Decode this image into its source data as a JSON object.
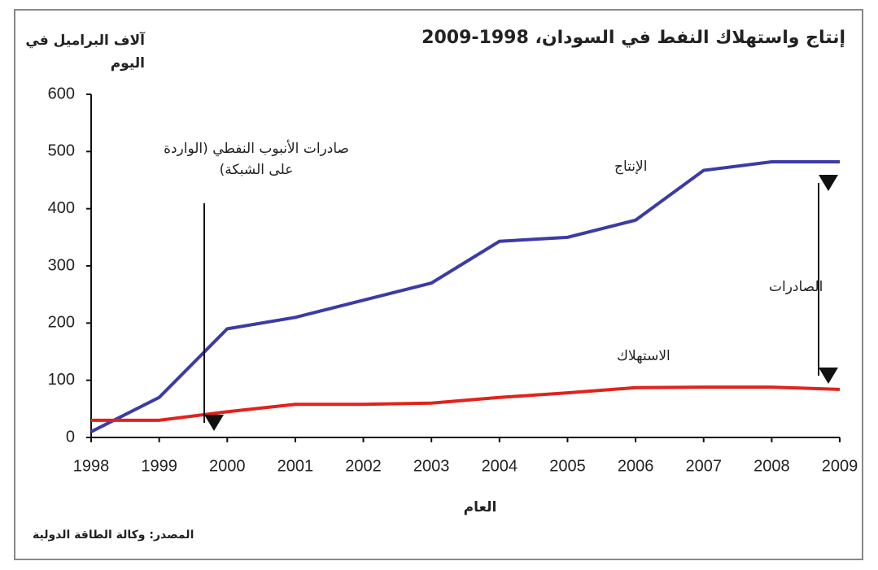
{
  "chart_data": {
    "type": "line",
    "title": "إنتاج واستهلاك النفط في السودان، 1998-2009",
    "ylabel": "آلاف البراميل في اليوم",
    "xlabel": "العام",
    "source": "المصدر: وكالة الطاقة الدولية",
    "x": [
      1998,
      1999,
      2000,
      2001,
      2002,
      2003,
      2004,
      2005,
      2006,
      2007,
      2008,
      2009
    ],
    "series": [
      {
        "name": "الإنتاج",
        "color": "#3b3ba6",
        "values": [
          10,
          70,
          190,
          210,
          240,
          270,
          343,
          350,
          380,
          467,
          482,
          482
        ]
      },
      {
        "name": "الاستهلاك",
        "color": "#e0231c",
        "values": [
          30,
          30,
          45,
          58,
          58,
          60,
          70,
          78,
          87,
          88,
          88,
          84
        ]
      }
    ],
    "annotations": [
      "صادرات الأنبوب النفطي (الواردة على الشبكة)",
      "الصادرات"
    ],
    "xlim": [
      1998,
      2009
    ],
    "xticks": [
      1998,
      1999,
      2000,
      2001,
      2002,
      2003,
      2004,
      2005,
      2006,
      2007,
      2008,
      2009
    ],
    "ylim": [
      0,
      600
    ],
    "yticks": [
      0,
      100,
      200,
      300,
      400,
      500,
      600
    ],
    "grid": false
  }
}
